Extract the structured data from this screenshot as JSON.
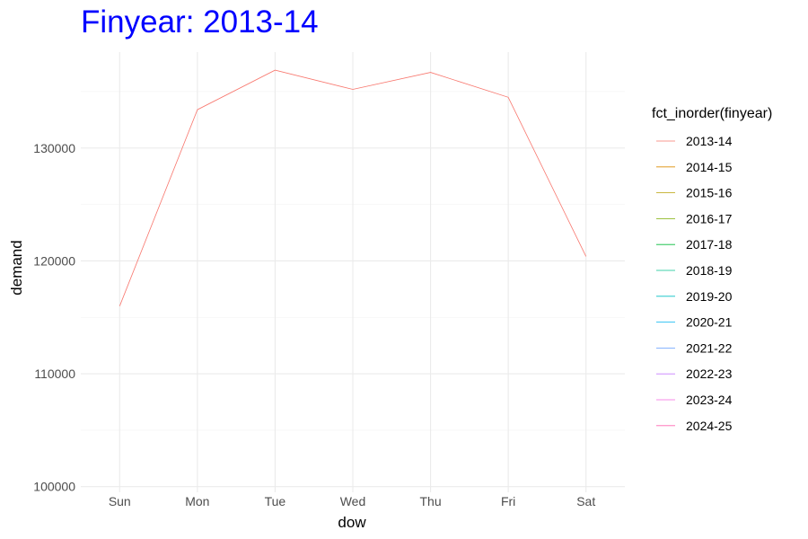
{
  "chart_data": {
    "type": "line",
    "title": "Finyear: 2013-14",
    "title_color": "#0000ff",
    "xlabel": "dow",
    "ylabel": "demand",
    "categories": [
      "Sun",
      "Mon",
      "Tue",
      "Wed",
      "Thu",
      "Fri",
      "Sat"
    ],
    "ylim": [
      99500,
      138500
    ],
    "y_ticks": [
      100000,
      110000,
      120000,
      130000
    ],
    "y_tick_labels": [
      "100000",
      "110000",
      "120000",
      "130000"
    ],
    "grid": true,
    "series": [
      {
        "name": "2013-14",
        "color": "#f8766d",
        "values": [
          116000,
          133400,
          136900,
          135200,
          136700,
          134500,
          120400
        ]
      }
    ],
    "legend": {
      "title": "fct_inorder(finyear)",
      "placement": "right",
      "items": [
        {
          "label": "2013-14",
          "color": "#f8766d"
        },
        {
          "label": "2014-15",
          "color": "#de8c00"
        },
        {
          "label": "2015-16",
          "color": "#b79f00"
        },
        {
          "label": "2016-17",
          "color": "#7cae00"
        },
        {
          "label": "2017-18",
          "color": "#00ba38"
        },
        {
          "label": "2018-19",
          "color": "#00c08b"
        },
        {
          "label": "2019-20",
          "color": "#00bfc4"
        },
        {
          "label": "2020-21",
          "color": "#00b4f0"
        },
        {
          "label": "2021-22",
          "color": "#619cff"
        },
        {
          "label": "2022-23",
          "color": "#c77cff"
        },
        {
          "label": "2023-24",
          "color": "#f564e3"
        },
        {
          "label": "2024-25",
          "color": "#ff64b0"
        }
      ]
    }
  }
}
